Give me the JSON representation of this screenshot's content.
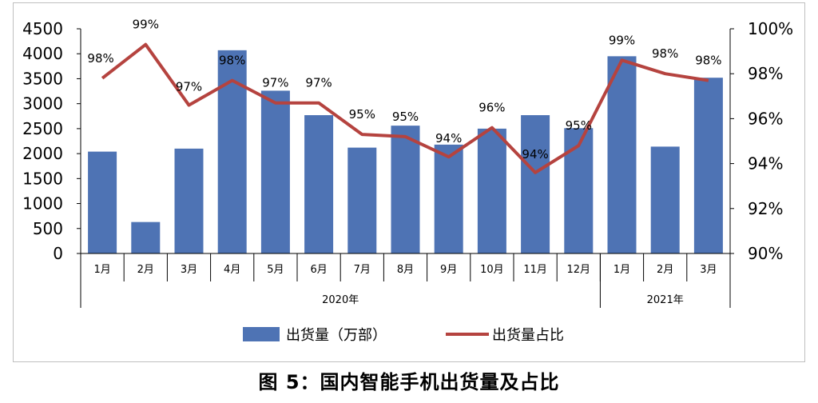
{
  "caption": "图 5：国内智能手机出货量及占比",
  "chart_data": {
    "type": "bar",
    "categories": [
      "1月",
      "2月",
      "3月",
      "4月",
      "5月",
      "6月",
      "7月",
      "8月",
      "9月",
      "10月",
      "11月",
      "12月",
      "1月",
      "2月",
      "3月"
    ],
    "groups": [
      {
        "label": "2020年",
        "count": 12
      },
      {
        "label": "2021年",
        "count": 3
      }
    ],
    "series": [
      {
        "name": "出货量（万部）",
        "type": "bar",
        "axis": "left",
        "color": "#4e73b4",
        "values": [
          2040,
          630,
          2100,
          4070,
          3260,
          2770,
          2120,
          2560,
          2180,
          2500,
          2770,
          2510,
          3950,
          2140,
          3520
        ]
      },
      {
        "name": "出货量占比",
        "type": "line",
        "axis": "right",
        "color": "#b5433f",
        "values": [
          97.8,
          99.3,
          96.6,
          97.7,
          96.7,
          96.7,
          95.3,
          95.2,
          94.3,
          95.6,
          93.6,
          94.8,
          98.6,
          98.0,
          97.7
        ],
        "labels": [
          "98%",
          "99%",
          "97%",
          "98%",
          "97%",
          "97%",
          "95%",
          "95%",
          "94%",
          "96%",
          "94%",
          "95%",
          "99%",
          "98%",
          "98%"
        ]
      }
    ],
    "y_left": {
      "min": 0,
      "max": 4500,
      "ticks": [
        "0",
        "500",
        "1000",
        "1500",
        "2000",
        "2500",
        "3000",
        "3500",
        "4000",
        "4500"
      ]
    },
    "y_right": {
      "min": 90,
      "max": 100,
      "ticks": [
        "90%",
        "92%",
        "94%",
        "96%",
        "98%",
        "100%"
      ]
    },
    "legend_position": "bottom",
    "grid": false
  }
}
